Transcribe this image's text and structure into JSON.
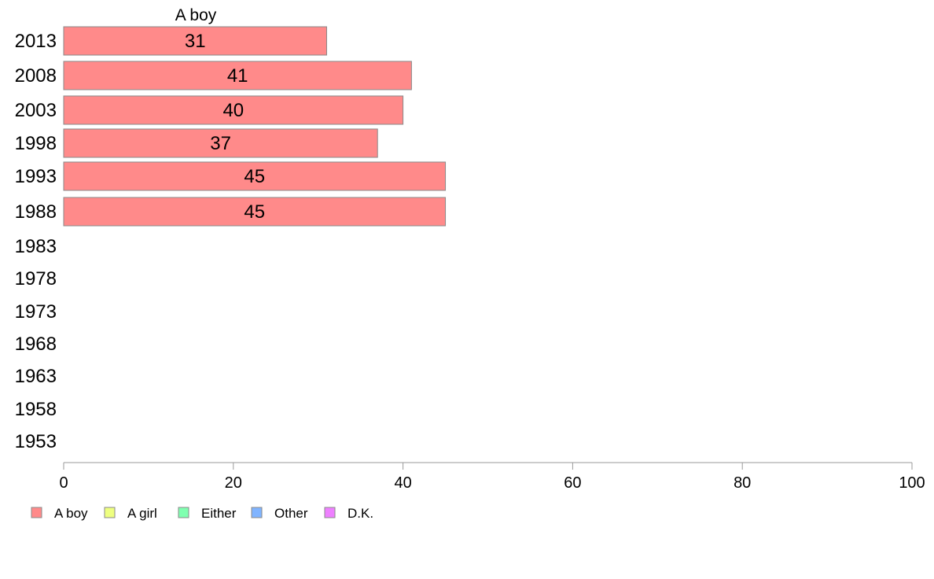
{
  "chart_data": {
    "type": "bar",
    "orientation": "horizontal",
    "stacked": true,
    "column_title": "A boy",
    "categories": [
      "2013",
      "2008",
      "2003",
      "1998",
      "1993",
      "1988",
      "1983",
      "1978",
      "1973",
      "1968",
      "1963",
      "1958",
      "1953"
    ],
    "series": [
      {
        "name": "A boy",
        "color": "#ff8a8a",
        "values": [
          31,
          41,
          40,
          37,
          45,
          45,
          null,
          null,
          null,
          null,
          null,
          null,
          null
        ]
      },
      {
        "name": "A girl",
        "color": "#eeff80",
        "values": [
          null,
          null,
          null,
          null,
          null,
          null,
          null,
          null,
          null,
          null,
          null,
          null,
          null
        ]
      },
      {
        "name": "Either",
        "color": "#80ffb0",
        "values": [
          null,
          null,
          null,
          null,
          null,
          null,
          null,
          null,
          null,
          null,
          null,
          null,
          null
        ]
      },
      {
        "name": "Other",
        "color": "#80b4ff",
        "values": [
          null,
          null,
          null,
          null,
          null,
          null,
          null,
          null,
          null,
          null,
          null,
          null,
          null
        ]
      },
      {
        "name": "D.K.",
        "color": "#ee80ff",
        "values": [
          null,
          null,
          null,
          null,
          null,
          null,
          null,
          null,
          null,
          null,
          null,
          null,
          null
        ]
      }
    ],
    "xlim": [
      0,
      100
    ],
    "xticks": [
      0,
      20,
      40,
      60,
      80,
      100
    ],
    "grid": false,
    "legend_position": "bottom-left"
  }
}
